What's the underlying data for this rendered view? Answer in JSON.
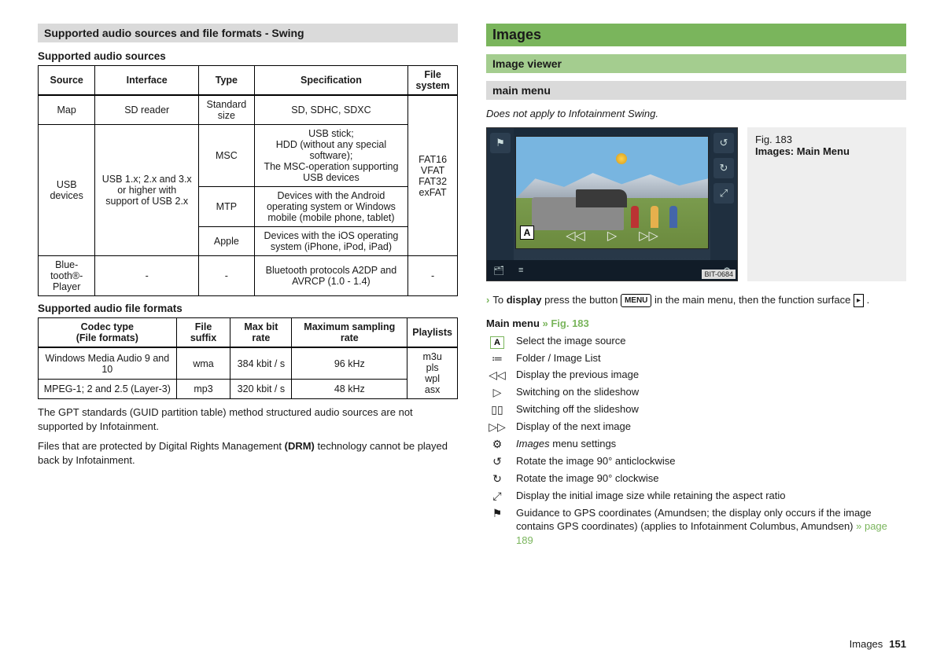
{
  "left": {
    "header": "Supported audio sources and file formats - Swing",
    "table1_title": "Supported audio sources",
    "t1": {
      "h": [
        "Source",
        "Interface",
        "Type",
        "Specification",
        "File system"
      ],
      "r1": [
        "Map",
        "SD reader",
        "Standard size",
        "SD, SDHC, SDXC"
      ],
      "usb_source": "USB devices",
      "usb_if": "USB 1.x; 2.x and 3.x or higher with support of USB 2.x",
      "msc_type": "MSC",
      "msc_spec": "USB stick;\nHDD (without any special software);\nThe MSC-operation supporting USB devices",
      "mtp_type": "MTP",
      "mtp_spec": "Devices with the Android operating system or Windows mobile (mobile phone, tablet)",
      "apple_type": "Apple",
      "apple_spec": "Devices with the iOS operating system (iPhone, iPod, iPad)",
      "fs": "FAT16\nVFAT\nFAT32\nexFAT",
      "bt_source": "Blue-tooth®-Player",
      "bt_if": "-",
      "bt_type": "-",
      "bt_spec": "Bluetooth protocols A2DP and AVRCP (1.0 - 1.4)",
      "bt_fs": "-"
    },
    "table2_title": "Supported audio file formats",
    "t2": {
      "h": [
        "Codec type\n(File formats)",
        "File suffix",
        "Max bit rate",
        "Maximum sampling rate",
        "Playlists"
      ],
      "r1": [
        "Windows Media Audio 9 and 10",
        "wma",
        "384 kbit / s",
        "96 kHz"
      ],
      "r2": [
        "MPEG-1; 2 and 2.5 (Layer-3)",
        "mp3",
        "320 kbit / s",
        "48 kHz"
      ],
      "pl": "m3u\npls\nwpl\nasx"
    },
    "p1": "The GPT standards (GUID partition table) method structured audio sources are not supported by Infotainment.",
    "p2a": "Files that are protected by Digital Rights Management ",
    "p2b": "(DRM)",
    "p2c": " technology cannot be played back by Infotainment."
  },
  "right": {
    "h1": "Images",
    "h2": "Image viewer",
    "h3": "main menu",
    "note": "Does not apply to Infotainment Swing.",
    "fig_num": "Fig. 183",
    "fig_caption": "Images: Main Menu",
    "bit": "BIT-0684",
    "instr_a": "To ",
    "instr_b": "display",
    "instr_c": " press the button ",
    "instr_menu": "MENU",
    "instr_d": " in the main menu, then the function surface ",
    "mm_title_a": "Main menu ",
    "mm_title_b": "» Fig. 183",
    "legend": {
      "A": "Select the image source",
      "list": "Folder / Image List",
      "prev": "Display the previous image",
      "play": "Switching on the slideshow",
      "pause": "Switching off the slideshow",
      "next": "Display of the next image",
      "gear_a": "Images",
      "gear_b": " menu settings",
      "ccw": "Rotate the image 90° anticlockwise",
      "cw": "Rotate the image 90° clockwise",
      "fit": "Display the initial image size while retaining the aspect ratio",
      "gps_a": "Guidance to GPS coordinates (Amundsen; the display only occurs if the image contains GPS coordinates) (applies to Infotainment Columbus, Amundsen) ",
      "gps_b": "» page 189"
    }
  },
  "footer": {
    "section": "Images",
    "page": "151"
  }
}
